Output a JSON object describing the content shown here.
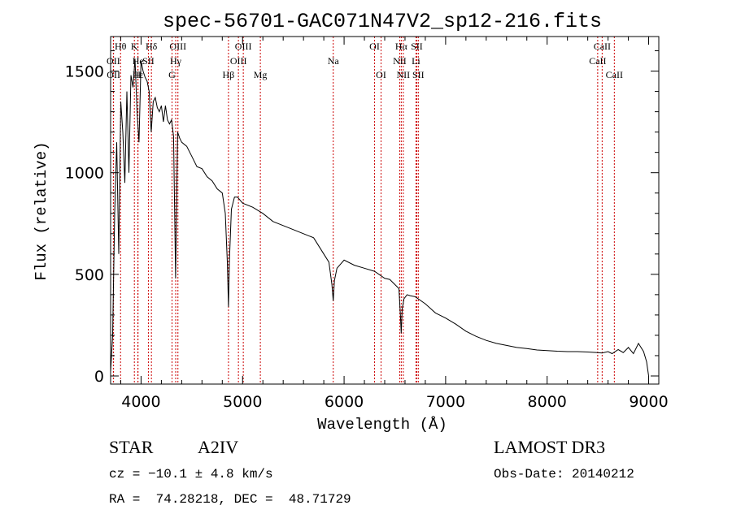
{
  "chart_data": {
    "type": "line",
    "title": "spec-56701-GAC071N47V2_sp12-216.fits",
    "xlabel": "Wavelength (Å)",
    "ylabel": "Flux (relative)",
    "xlim": [
      3700,
      9100
    ],
    "ylim": [
      -40,
      1670
    ],
    "xticks": [
      4000,
      5000,
      6000,
      7000,
      8000,
      9000
    ],
    "yticks": [
      0,
      500,
      1000,
      1500
    ],
    "x_tick_labels": [
      "4000",
      "5000",
      "6000",
      "7000",
      "8000",
      "9000"
    ],
    "y_tick_labels": [
      "0",
      "500",
      "1000",
      "1500"
    ],
    "series": [
      {
        "name": "spectrum",
        "x": [
          3700,
          3720,
          3740,
          3760,
          3780,
          3800,
          3820,
          3840,
          3860,
          3880,
          3900,
          3920,
          3940,
          3960,
          3980,
          4000,
          4020,
          4040,
          4060,
          4080,
          4100,
          4120,
          4140,
          4160,
          4180,
          4200,
          4220,
          4240,
          4260,
          4280,
          4300,
          4320,
          4340,
          4360,
          4380,
          4400,
          4450,
          4500,
          4550,
          4600,
          4650,
          4700,
          4750,
          4800,
          4830,
          4850,
          4861,
          4870,
          4890,
          4920,
          4950,
          5000,
          5100,
          5200,
          5300,
          5400,
          5500,
          5600,
          5700,
          5800,
          5850,
          5880,
          5893,
          5905,
          5930,
          6000,
          6100,
          6200,
          6300,
          6400,
          6450,
          6500,
          6540,
          6555,
          6563,
          6572,
          6590,
          6620,
          6650,
          6700,
          6800,
          6900,
          7000,
          7100,
          7200,
          7300,
          7400,
          7500,
          7600,
          7700,
          7800,
          7900,
          8000,
          8100,
          8200,
          8300,
          8400,
          8500,
          8540,
          8600,
          8640,
          8700,
          8750,
          8800,
          8850,
          8900,
          8950,
          8980,
          9000
        ],
        "y": [
          20,
          200,
          800,
          1150,
          600,
          1350,
          1200,
          950,
          1400,
          1000,
          1480,
          1420,
          1560,
          1300,
          1150,
          1550,
          1500,
          1470,
          1450,
          1400,
          1200,
          1350,
          1370,
          1320,
          1300,
          1330,
          1250,
          1330,
          1260,
          1240,
          1260,
          1180,
          480,
          1200,
          1170,
          1150,
          1130,
          1080,
          1030,
          1020,
          980,
          960,
          920,
          900,
          800,
          560,
          340,
          560,
          820,
          880,
          880,
          850,
          830,
          800,
          760,
          740,
          720,
          700,
          680,
          600,
          560,
          450,
          370,
          470,
          530,
          570,
          545,
          530,
          515,
          480,
          475,
          450,
          430,
          300,
          210,
          330,
          380,
          400,
          395,
          390,
          355,
          310,
          285,
          255,
          220,
          195,
          175,
          160,
          150,
          140,
          135,
          128,
          125,
          122,
          120,
          120,
          118,
          115,
          113,
          120,
          110,
          130,
          115,
          140,
          110,
          160,
          120,
          70,
          0
        ]
      }
    ],
    "line_labels": [
      {
        "label": "Hθ",
        "x": 3798,
        "row": 0
      },
      {
        "label": "OII",
        "x": 3727,
        "row": 1
      },
      {
        "label": "OII",
        "x": 3729,
        "row": 2
      },
      {
        "label": "K",
        "x": 3934,
        "row": 0
      },
      {
        "label": "He",
        "x": 3970,
        "row": 1
      },
      {
        "label": "Hε",
        "x": 3970,
        "row": 2
      },
      {
        "label": "H",
        "x": 3968,
        "row": 2
      },
      {
        "label": "Hδ",
        "x": 4102,
        "row": 0
      },
      {
        "label": "SII",
        "x": 4072,
        "row": 1
      },
      {
        "label": "OIII",
        "x": 4363,
        "row": 0
      },
      {
        "label": "Hγ",
        "x": 4341,
        "row": 1
      },
      {
        "label": "G",
        "x": 4305,
        "row": 2
      },
      {
        "label": "Hβ",
        "x": 4861,
        "row": 2
      },
      {
        "label": "OIII",
        "x": 5007,
        "row": 0
      },
      {
        "label": "OIII",
        "x": 4959,
        "row": 1
      },
      {
        "label": "Mg",
        "x": 5175,
        "row": 2
      },
      {
        "label": "Na",
        "x": 5893,
        "row": 1
      },
      {
        "label": "OI",
        "x": 6300,
        "row": 0
      },
      {
        "label": "OI",
        "x": 6364,
        "row": 2
      },
      {
        "label": "Hα",
        "x": 6563,
        "row": 0
      },
      {
        "label": "SII",
        "x": 6716,
        "row": 0
      },
      {
        "label": "NII",
        "x": 6548,
        "row": 1
      },
      {
        "label": "Li",
        "x": 6708,
        "row": 1
      },
      {
        "label": "NII",
        "x": 6583,
        "row": 2
      },
      {
        "label": "SII",
        "x": 6731,
        "row": 2
      },
      {
        "label": "CaII",
        "x": 8542,
        "row": 0
      },
      {
        "label": "CaII",
        "x": 8498,
        "row": 1
      },
      {
        "label": "CaII",
        "x": 8662,
        "row": 2
      }
    ]
  },
  "info": {
    "object_class": "STAR",
    "subclass": "A2IV",
    "survey": "LAMOST DR3",
    "velocity": "cz = −10.1 ± 4.8 km/s",
    "obs_date": "Obs-Date: 20140212",
    "coords": "RA =  74.28218, DEC =  48.71729"
  },
  "colors": {
    "line": "#000000",
    "marker": "#cc0000",
    "axis": "#000000"
  }
}
